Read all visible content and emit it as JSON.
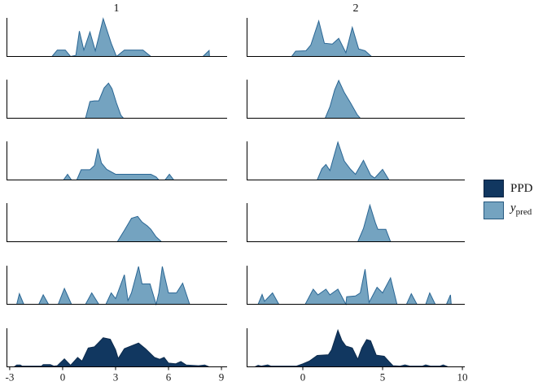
{
  "figure": {
    "background": "#ffffff",
    "axis_color": "#000000",
    "text_color": "#1c1c1c"
  },
  "legend": {
    "items": [
      {
        "label": "PPD",
        "fill": "#113760",
        "stroke": "#0a2240"
      },
      {
        "label_main": "y",
        "label_sub": "pred",
        "fill": "#74a3c0",
        "stroke": "#27597f"
      }
    ]
  },
  "chart_data": {
    "type": "area",
    "description": "Faceted density overlays (posterior predictive check): 6 rows x 2 columns; rows 1-5 are y_pred replicate densities (light blue), bottom row is PPD (dark navy). Heights normalized 0-1 per panel.",
    "legend_position": "right",
    "grid": false,
    "series_colors": {
      "y_pred": {
        "fill": "#74a3c0",
        "stroke": "#2a6694"
      },
      "PPD": {
        "fill": "#113760",
        "stroke": "#0c2b4d"
      }
    },
    "columns": [
      {
        "title": "1",
        "x_ticks": [
          -3,
          0,
          3,
          6,
          9
        ],
        "x_range": [
          -3.18,
          9.32
        ],
        "rows": [
          {
            "series": "y_pred",
            "points": [
              [
                -0.6,
                0
              ],
              [
                -0.3,
                0.17
              ],
              [
                0.15,
                0.17
              ],
              [
                0.45,
                0
              ],
              [
                0.75,
                0.03
              ],
              [
                0.95,
                0.67
              ],
              [
                1.2,
                0.17
              ],
              [
                1.55,
                0.65
              ],
              [
                1.85,
                0.15
              ],
              [
                2.3,
                1.0
              ],
              [
                2.75,
                0.35
              ],
              [
                3.05,
                0
              ],
              [
                3.5,
                0.17
              ],
              [
                4.55,
                0.17
              ],
              [
                5.0,
                0
              ],
              [
                7.95,
                0
              ],
              [
                8.3,
                0.16
              ],
              [
                8.32,
                0
              ]
            ]
          },
          {
            "series": "y_pred",
            "points": [
              [
                1.3,
                0
              ],
              [
                1.55,
                0.44
              ],
              [
                1.8,
                0.46
              ],
              [
                2.05,
                0.46
              ],
              [
                2.35,
                0.8
              ],
              [
                2.6,
                0.93
              ],
              [
                2.8,
                0.78
              ],
              [
                3.05,
                0.4
              ],
              [
                3.3,
                0.08
              ],
              [
                3.45,
                0
              ]
            ]
          },
          {
            "series": "y_pred",
            "points": [
              [
                0.05,
                0
              ],
              [
                0.28,
                0.15
              ],
              [
                0.5,
                0
              ],
              [
                0.8,
                0
              ],
              [
                1.05,
                0.27
              ],
              [
                1.55,
                0.27
              ],
              [
                1.8,
                0.38
              ],
              [
                2.0,
                0.83
              ],
              [
                2.2,
                0.45
              ],
              [
                2.5,
                0.28
              ],
              [
                3.0,
                0.15
              ],
              [
                5.0,
                0.15
              ],
              [
                5.3,
                0.08
              ],
              [
                5.45,
                0
              ],
              [
                5.8,
                0
              ],
              [
                6.05,
                0.15
              ],
              [
                6.3,
                0
              ]
            ]
          },
          {
            "series": "y_pred",
            "points": [
              [
                3.1,
                0
              ],
              [
                3.5,
                0.3
              ],
              [
                3.9,
                0.62
              ],
              [
                4.25,
                0.67
              ],
              [
                4.5,
                0.52
              ],
              [
                4.8,
                0.42
              ],
              [
                5.0,
                0.33
              ],
              [
                5.3,
                0.13
              ],
              [
                5.6,
                0
              ]
            ]
          },
          {
            "series": "y_pred",
            "points": [
              [
                -2.6,
                0
              ],
              [
                -2.45,
                0.28
              ],
              [
                -2.2,
                0
              ],
              [
                -1.35,
                0
              ],
              [
                -1.1,
                0.25
              ],
              [
                -0.8,
                0
              ],
              [
                -0.25,
                0
              ],
              [
                0.1,
                0.42
              ],
              [
                0.5,
                0
              ],
              [
                1.3,
                0
              ],
              [
                1.65,
                0.3
              ],
              [
                2.05,
                0
              ],
              [
                2.45,
                0
              ],
              [
                2.75,
                0.3
              ],
              [
                3.0,
                0.15
              ],
              [
                3.5,
                0.78
              ],
              [
                3.7,
                0.1
              ],
              [
                3.9,
                0.3
              ],
              [
                4.3,
                1.0
              ],
              [
                4.5,
                0.54
              ],
              [
                4.95,
                0.54
              ],
              [
                5.3,
                0
              ],
              [
                5.45,
                0.3
              ],
              [
                5.65,
                1.0
              ],
              [
                6.0,
                0.3
              ],
              [
                6.45,
                0.3
              ],
              [
                6.8,
                0.56
              ],
              [
                7.2,
                0
              ]
            ]
          },
          {
            "series": "PPD",
            "points": [
              [
                -2.75,
                0
              ],
              [
                -2.6,
                0.05
              ],
              [
                -2.4,
                0.05
              ],
              [
                -2.3,
                0.02
              ],
              [
                -1.2,
                0.02
              ],
              [
                -1.1,
                0.06
              ],
              [
                -0.7,
                0.06
              ],
              [
                -0.5,
                0.02
              ],
              [
                -0.3,
                0.03
              ],
              [
                0.1,
                0.21
              ],
              [
                0.45,
                0.04
              ],
              [
                0.85,
                0.25
              ],
              [
                1.1,
                0.15
              ],
              [
                1.45,
                0.5
              ],
              [
                1.8,
                0.53
              ],
              [
                2.05,
                0.65
              ],
              [
                2.3,
                0.77
              ],
              [
                2.7,
                0.73
              ],
              [
                3.0,
                0.45
              ],
              [
                3.15,
                0.22
              ],
              [
                3.5,
                0.48
              ],
              [
                4.3,
                0.63
              ],
              [
                4.7,
                0.48
              ],
              [
                5.2,
                0.25
              ],
              [
                5.5,
                0.2
              ],
              [
                5.75,
                0.25
              ],
              [
                6.0,
                0.1
              ],
              [
                6.4,
                0.08
              ],
              [
                6.7,
                0.14
              ],
              [
                7.0,
                0.05
              ],
              [
                7.7,
                0.03
              ],
              [
                8.05,
                0.05
              ],
              [
                8.3,
                0
              ]
            ]
          }
        ]
      },
      {
        "title": "2",
        "x_ticks": [
          0,
          5,
          10
        ],
        "x_range": [
          -3.52,
          10.15
        ],
        "rows": [
          {
            "series": "y_pred",
            "points": [
              [
                -0.7,
                0
              ],
              [
                -0.45,
                0.14
              ],
              [
                0.2,
                0.15
              ],
              [
                0.5,
                0.3
              ],
              [
                1.0,
                0.94
              ],
              [
                1.35,
                0.35
              ],
              [
                1.85,
                0.33
              ],
              [
                2.25,
                0.48
              ],
              [
                2.7,
                0.1
              ],
              [
                3.1,
                0.77
              ],
              [
                3.5,
                0.2
              ],
              [
                3.9,
                0.15
              ],
              [
                4.3,
                0
              ]
            ]
          },
          {
            "series": "y_pred",
            "points": [
              [
                1.4,
                0
              ],
              [
                1.7,
                0.3
              ],
              [
                2.0,
                0.75
              ],
              [
                2.25,
                1.0
              ],
              [
                2.6,
                0.68
              ],
              [
                3.0,
                0.4
              ],
              [
                3.4,
                0.1
              ],
              [
                3.6,
                0
              ]
            ]
          },
          {
            "series": "y_pred",
            "points": [
              [
                0.9,
                0
              ],
              [
                1.2,
                0.3
              ],
              [
                1.45,
                0.41
              ],
              [
                1.7,
                0.25
              ],
              [
                2.2,
                1.0
              ],
              [
                2.6,
                0.5
              ],
              [
                3.0,
                0.28
              ],
              [
                3.3,
                0.15
              ],
              [
                3.8,
                0.52
              ],
              [
                4.25,
                0.13
              ],
              [
                4.5,
                0.05
              ],
              [
                5.0,
                0.28
              ],
              [
                5.4,
                0
              ]
            ]
          },
          {
            "series": "y_pred",
            "points": [
              [
                3.45,
                0
              ],
              [
                3.8,
                0.35
              ],
              [
                4.2,
                0.97
              ],
              [
                4.55,
                0.5
              ],
              [
                4.7,
                0.33
              ],
              [
                5.2,
                0.33
              ],
              [
                5.5,
                0
              ]
            ]
          },
          {
            "series": "y_pred",
            "points": [
              [
                -2.8,
                0
              ],
              [
                -2.55,
                0.26
              ],
              [
                -2.4,
                0.08
              ],
              [
                -1.9,
                0.3
              ],
              [
                -1.5,
                0
              ],
              [
                0.15,
                0
              ],
              [
                0.65,
                0.4
              ],
              [
                0.95,
                0.25
              ],
              [
                1.45,
                0.4
              ],
              [
                1.7,
                0.25
              ],
              [
                2.2,
                0.4
              ],
              [
                2.7,
                0
              ],
              [
                2.75,
                0.2
              ],
              [
                3.3,
                0.22
              ],
              [
                3.6,
                0.3
              ],
              [
                3.9,
                0.93
              ],
              [
                4.15,
                0.05
              ],
              [
                4.65,
                0.45
              ],
              [
                5.0,
                0.3
              ],
              [
                5.5,
                0.7
              ],
              [
                5.9,
                0
              ],
              [
                6.5,
                0
              ],
              [
                6.8,
                0.28
              ],
              [
                7.15,
                0
              ],
              [
                7.7,
                0
              ],
              [
                7.95,
                0.3
              ],
              [
                8.3,
                0
              ],
              [
                9.0,
                0
              ],
              [
                9.25,
                0.25
              ],
              [
                9.3,
                0
              ]
            ]
          },
          {
            "series": "PPD",
            "points": [
              [
                -3.0,
                0
              ],
              [
                -2.8,
                0.04
              ],
              [
                -2.6,
                0.02
              ],
              [
                -2.2,
                0.05
              ],
              [
                -2.0,
                0.02
              ],
              [
                -0.4,
                0.02
              ],
              [
                0.0,
                0.08
              ],
              [
                0.4,
                0.15
              ],
              [
                0.9,
                0.3
              ],
              [
                1.6,
                0.32
              ],
              [
                1.8,
                0.45
              ],
              [
                2.2,
                0.97
              ],
              [
                2.45,
                0.7
              ],
              [
                2.7,
                0.55
              ],
              [
                3.1,
                0.5
              ],
              [
                3.45,
                0.2
              ],
              [
                3.7,
                0.5
              ],
              [
                4.0,
                0.72
              ],
              [
                4.25,
                0.69
              ],
              [
                4.6,
                0.31
              ],
              [
                5.1,
                0.28
              ],
              [
                5.4,
                0.14
              ],
              [
                5.65,
                0.03
              ],
              [
                6.1,
                0.02
              ],
              [
                6.4,
                0.05
              ],
              [
                6.7,
                0.02
              ],
              [
                7.5,
                0.02
              ],
              [
                7.7,
                0.05
              ],
              [
                8.0,
                0.02
              ],
              [
                8.6,
                0.02
              ],
              [
                8.8,
                0.05
              ],
              [
                9.1,
                0
              ]
            ]
          }
        ]
      }
    ]
  }
}
